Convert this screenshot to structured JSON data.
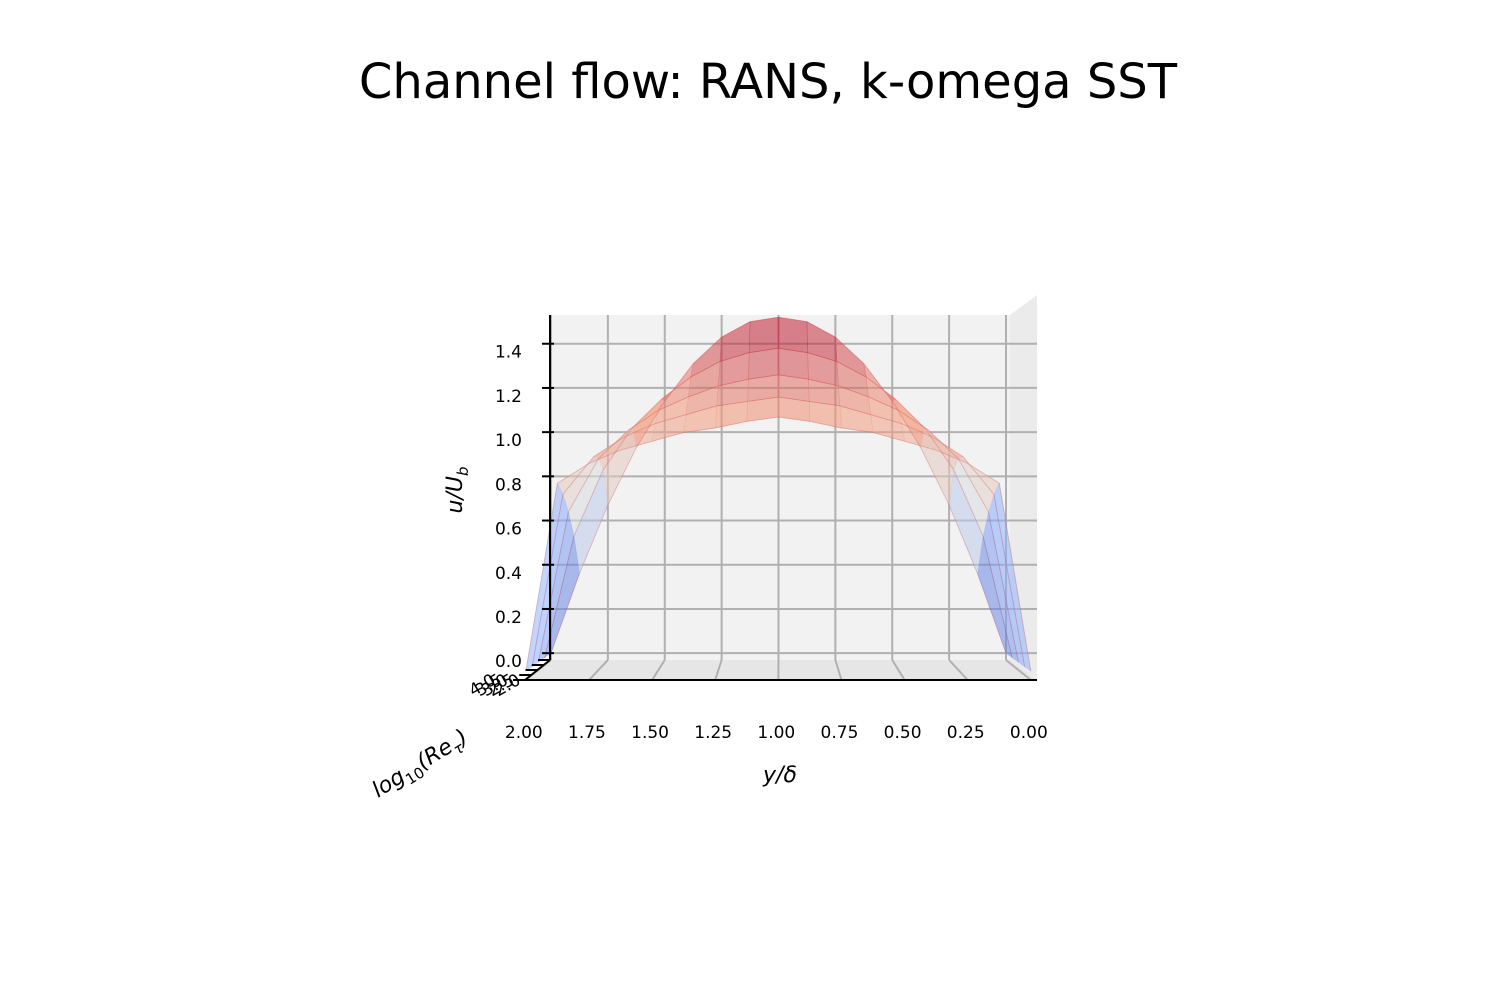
{
  "chart_data": {
    "type": "surface",
    "title": "Channel flow: RANS, k-omega SST",
    "xlabel": "y/δ",
    "ylabel": "u/U",
    "ylabel_subscript": "b",
    "zlabel_parts": [
      "log",
      "10",
      "(Re",
      "τ",
      ")"
    ],
    "x": [
      0,
      0.125,
      0.25,
      0.375,
      0.5,
      0.625,
      0.75,
      0.875,
      1,
      1.125,
      1.25,
      1.375,
      1.5,
      1.625,
      1.75,
      1.875,
      2
    ],
    "z": [
      2.0,
      2.5,
      3.0,
      3.5,
      4.0
    ],
    "values": [
      [
        0,
        0.36,
        0.67,
        0.93,
        1.14,
        1.31,
        1.43,
        1.5,
        1.52,
        1.5,
        1.43,
        1.31,
        1.14,
        0.93,
        0.67,
        0.36,
        0
      ],
      [
        0,
        0.55,
        0.85,
        1.04,
        1.17,
        1.27,
        1.34,
        1.38,
        1.4,
        1.38,
        1.34,
        1.27,
        1.17,
        1.04,
        0.85,
        0.55,
        0
      ],
      [
        0,
        0.68,
        0.92,
        1.05,
        1.14,
        1.2,
        1.25,
        1.28,
        1.3,
        1.28,
        1.25,
        1.2,
        1.14,
        1.05,
        0.92,
        0.68,
        0
      ],
      [
        0,
        0.78,
        0.95,
        1.04,
        1.1,
        1.14,
        1.18,
        1.2,
        1.22,
        1.2,
        1.18,
        1.14,
        1.1,
        1.04,
        0.95,
        0.78,
        0
      ],
      [
        0,
        0.85,
        0.94,
        1.0,
        1.04,
        1.08,
        1.1,
        1.13,
        1.15,
        1.13,
        1.1,
        1.08,
        1.04,
        1.0,
        0.94,
        0.85,
        0
      ]
    ],
    "colormap": [
      "#3b4cc0",
      "#8db0fe",
      "#dddddd",
      "#f49a7b",
      "#b40426"
    ],
    "xlim": [
      2.0,
      0.0
    ],
    "xticks": [
      {
        "value": 2,
        "label": "2.00"
      },
      {
        "value": 1.75,
        "label": "1.75"
      },
      {
        "value": 1.5,
        "label": "1.50"
      },
      {
        "value": 1.25,
        "label": "1.25"
      },
      {
        "value": 1,
        "label": "1.00"
      },
      {
        "value": 0.75,
        "label": "0.75"
      },
      {
        "value": 0.5,
        "label": "0.50"
      },
      {
        "value": 0.25,
        "label": "0.25"
      },
      {
        "value": 0,
        "label": "0.00"
      }
    ],
    "ylim": [
      -0.04,
      1.53
    ],
    "yticks": [
      {
        "value": 0,
        "label": "0.0"
      },
      {
        "value": 0.2,
        "label": "0.2"
      },
      {
        "value": 0.4,
        "label": "0.4"
      },
      {
        "value": 0.6,
        "label": "0.6"
      },
      {
        "value": 0.8,
        "label": "0.8"
      },
      {
        "value": 1,
        "label": "1.0"
      },
      {
        "value": 1.2,
        "label": "1.2"
      },
      {
        "value": 1.4,
        "label": "1.4"
      }
    ],
    "zlim": [
      2.0,
      4.0
    ],
    "zticks": [
      {
        "value": 2,
        "label": "2.0"
      },
      {
        "value": 2.5,
        "label": "2.5"
      },
      {
        "value": 3,
        "label": "3.0"
      },
      {
        "value": 3.5,
        "label": "3.5"
      },
      {
        "value": 4,
        "label": "4.0"
      }
    ],
    "grid": true
  }
}
